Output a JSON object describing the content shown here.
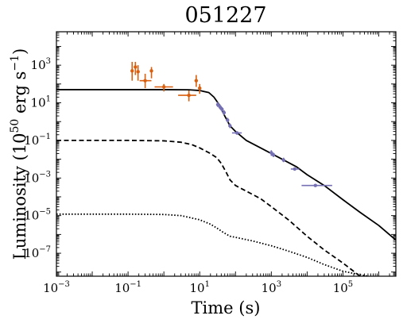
{
  "chart_data": {
    "type": "line",
    "title": "051227",
    "xlabel": "Time (s)",
    "ylabel": "Luminosity (10^50 erg s^-1)",
    "xscale": "log",
    "yscale": "log",
    "xlim": [
      0.001,
      3000000
    ],
    "ylim": [
      6e-09,
      60000
    ],
    "x_ticks": [
      {
        "value": 0.001,
        "base": "10",
        "exp": "−3"
      },
      {
        "value": 0.1,
        "base": "10",
        "exp": "−1"
      },
      {
        "value": 10,
        "base": "10",
        "exp": "1"
      },
      {
        "value": 1000,
        "base": "10",
        "exp": "3"
      },
      {
        "value": 100000,
        "base": "10",
        "exp": "5"
      }
    ],
    "y_ticks": [
      {
        "value": 1e-07,
        "base": "10",
        "exp": "−7"
      },
      {
        "value": 1e-05,
        "base": "10",
        "exp": "−5"
      },
      {
        "value": 0.001,
        "base": "10",
        "exp": "−3"
      },
      {
        "value": 0.1,
        "base": "10",
        "exp": "−1"
      },
      {
        "value": 10,
        "base": "10",
        "exp": "1"
      },
      {
        "value": 1000,
        "base": "10",
        "exp": "3"
      }
    ],
    "grid": false,
    "legend": "none",
    "lines": [
      {
        "style": "solid",
        "color": "#000000",
        "points": [
          [
            0.001,
            50
          ],
          [
            0.1,
            50
          ],
          [
            1,
            50
          ],
          [
            5,
            49
          ],
          [
            10,
            45
          ],
          [
            18,
            35
          ],
          [
            25,
            20
          ],
          [
            35,
            8
          ],
          [
            50,
            2
          ],
          [
            70,
            0.6
          ],
          [
            100,
            0.3
          ],
          [
            200,
            0.1
          ],
          [
            500,
            0.04
          ],
          [
            1000,
            0.02
          ],
          [
            2000,
            0.01
          ],
          [
            5000,
            0.004
          ],
          [
            10000,
            0.0015
          ],
          [
            30000,
            0.0004
          ],
          [
            100000,
            7e-05
          ],
          [
            300000,
            1.5e-05
          ],
          [
            1000000,
            3e-06
          ],
          [
            3000000,
            5e-07
          ]
        ]
      },
      {
        "style": "dashed",
        "color": "#000000",
        "points": [
          [
            0.001,
            0.1
          ],
          [
            0.1,
            0.1
          ],
          [
            1,
            0.095
          ],
          [
            3,
            0.08
          ],
          [
            6,
            0.06
          ],
          [
            10,
            0.04
          ],
          [
            20,
            0.02
          ],
          [
            30,
            0.012
          ],
          [
            40,
            0.006
          ],
          [
            55,
            0.002
          ],
          [
            70,
            0.0008
          ],
          [
            100,
            0.0004
          ],
          [
            200,
            0.0002
          ],
          [
            500,
            8e-05
          ],
          [
            1000,
            3e-05
          ],
          [
            3000,
            6e-06
          ],
          [
            10000,
            8e-07
          ],
          [
            30000,
            1.5e-07
          ],
          [
            100000,
            3e-08
          ],
          [
            300000,
            6e-09
          ]
        ]
      },
      {
        "style": "dotted",
        "color": "#000000",
        "points": [
          [
            0.001,
            1.2e-05
          ],
          [
            0.1,
            1.2e-05
          ],
          [
            1,
            1.15e-05
          ],
          [
            3,
            1e-05
          ],
          [
            6,
            7.5e-06
          ],
          [
            10,
            6e-06
          ],
          [
            20,
            3.5e-06
          ],
          [
            30,
            2.2e-06
          ],
          [
            45,
            1.3e-06
          ],
          [
            70,
            8e-07
          ],
          [
            100,
            7e-07
          ],
          [
            300,
            4.5e-07
          ],
          [
            1000,
            2.5e-07
          ],
          [
            3000,
            1.3e-07
          ],
          [
            10000,
            6e-08
          ],
          [
            30000,
            2.5e-08
          ],
          [
            100000,
            1.1e-08
          ],
          [
            500000,
            6e-09
          ]
        ]
      }
    ],
    "errorbar_series": [
      {
        "color": "#d95f0e",
        "points": [
          {
            "x": 0.13,
            "y": 500,
            "xerr": [
              0.13,
              0.13
            ],
            "yerr": [
              150,
              1500
            ]
          },
          {
            "x": 0.16,
            "y": 800,
            "xerr": [
              0.16,
              0.16
            ],
            "yerr": [
              300,
              1500
            ]
          },
          {
            "x": 0.19,
            "y": 450,
            "xerr": [
              0.17,
              0.21
            ],
            "yerr": [
              150,
              1000
            ]
          },
          {
            "x": 0.3,
            "y": 150,
            "xerr": [
              0.21,
              0.45
            ],
            "yerr": [
              60,
              350
            ]
          },
          {
            "x": 0.45,
            "y": 500,
            "xerr": [
              0.45,
              0.45
            ],
            "yerr": [
              200,
              800
            ]
          },
          {
            "x": 1,
            "y": 70,
            "xerr": [
              0.55,
              1.8
            ],
            "yerr": [
              40,
              100
            ]
          },
          {
            "x": 5,
            "y": 25,
            "xerr": [
              2.5,
              8
            ],
            "yerr": [
              12,
              45
            ]
          },
          {
            "x": 8,
            "y": 150,
            "xerr": [
              8,
              8
            ],
            "yerr": [
              70,
              300
            ]
          },
          {
            "x": 10,
            "y": 60,
            "xerr": [
              9,
              11
            ],
            "yerr": [
              30,
              100
            ]
          }
        ]
      },
      {
        "color": "#7570b3",
        "points": [
          {
            "x": 32,
            "y": 8,
            "xerr": [
              30,
              35
            ],
            "yerr": [
              6,
              11
            ]
          },
          {
            "x": 37,
            "y": 6,
            "xerr": [
              34,
              40
            ],
            "yerr": [
              4.5,
              8
            ]
          },
          {
            "x": 42,
            "y": 4.5,
            "xerr": [
              39,
              45
            ],
            "yerr": [
              3.4,
              6
            ]
          },
          {
            "x": 48,
            "y": 3,
            "xerr": [
              45,
              52
            ],
            "yerr": [
              2.2,
              4
            ]
          },
          {
            "x": 60,
            "y": 1.2,
            "xerr": [
              55,
              65
            ],
            "yerr": [
              0.9,
              1.6
            ]
          },
          {
            "x": 70,
            "y": 0.6,
            "xerr": [
              65,
              75
            ],
            "yerr": [
              0.45,
              0.8
            ]
          },
          {
            "x": 110,
            "y": 0.25,
            "xerr": [
              80,
              150
            ],
            "yerr": [
              0.2,
              0.3
            ]
          },
          {
            "x": 1000,
            "y": 0.022,
            "xerr": [
              950,
              1050
            ],
            "yerr": [
              0.015,
              0.03
            ]
          },
          {
            "x": 1150,
            "y": 0.017,
            "xerr": [
              1100,
              1200
            ],
            "yerr": [
              0.013,
              0.022
            ]
          },
          {
            "x": 2200,
            "y": 0.009,
            "xerr": [
              2000,
              2400
            ],
            "yerr": [
              0.007,
              0.012
            ]
          },
          {
            "x": 4500,
            "y": 0.003,
            "xerr": [
              3500,
              6000
            ],
            "yerr": [
              0.0025,
              0.0036
            ]
          },
          {
            "x": 17000,
            "y": 0.0004,
            "xerr": [
              7000,
              50000
            ],
            "yerr": [
              0.00035,
              0.00045
            ]
          }
        ]
      }
    ]
  }
}
